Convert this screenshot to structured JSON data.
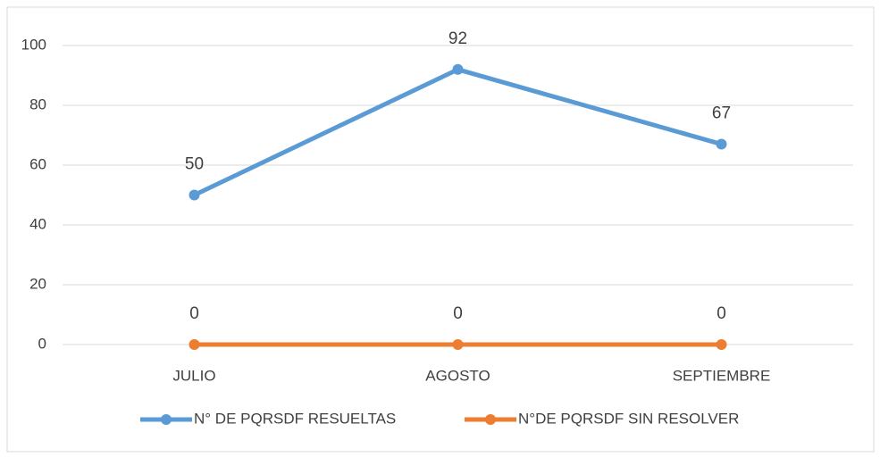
{
  "chart_data": {
    "type": "line",
    "categories": [
      "JULIO",
      "AGOSTO",
      "SEPTIEMBRE"
    ],
    "series": [
      {
        "name": "N° DE PQRSDF RESUELTAS",
        "color": "#5b9bd5",
        "values": [
          50,
          92,
          67
        ]
      },
      {
        "name": "N°DE PQRSDF SIN RESOLVER",
        "color": "#ed7d31",
        "values": [
          0,
          0,
          0
        ]
      }
    ],
    "ylim": [
      0,
      100
    ],
    "yticks": [
      0,
      20,
      40,
      60,
      80,
      100
    ],
    "grid": true,
    "legend": "bottom"
  }
}
